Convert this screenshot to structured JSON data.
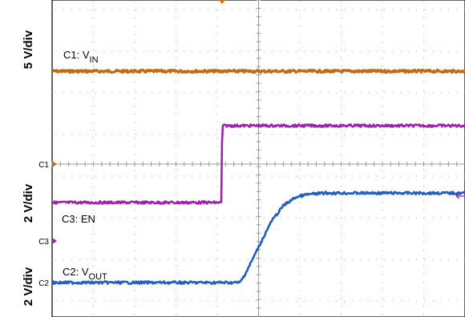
{
  "chart_data": {
    "type": "line",
    "grid": true,
    "y_axis_labels": [
      {
        "text": "5 V/div"
      },
      {
        "text": "2 V/div"
      },
      {
        "text": "2 V/div"
      }
    ],
    "series": [
      {
        "name": "C1: VIN",
        "label_main": "C1: V",
        "label_sub": "IN",
        "color": "#c46a10",
        "ground_marker": "C1",
        "x": [
          0,
          10
        ],
        "y_div": [
          5.5,
          5.5
        ]
      },
      {
        "name": "C3: EN",
        "label_main": "C3: EN",
        "label_sub": "",
        "color": "#a020b0",
        "ground_marker": "C3",
        "x": [
          0,
          4.1,
          4.12,
          10
        ],
        "y_div": [
          1.0,
          1.0,
          3.0,
          3.0
        ]
      },
      {
        "name": "C2: VOUT",
        "label_main": "C2: V",
        "label_sub": "OUT",
        "color": "#1f5fc4",
        "ground_marker": "C2",
        "x": [
          0,
          4.55,
          4.7,
          5.0,
          5.3,
          5.6,
          5.9,
          6.2,
          6.6,
          7.0,
          10
        ],
        "y_div": [
          0,
          0,
          0.25,
          0.85,
          1.45,
          1.85,
          2.05,
          2.12,
          2.15,
          2.15,
          2.15
        ]
      }
    ],
    "time_divisions": 10,
    "vertical_divisions": 7.5
  }
}
